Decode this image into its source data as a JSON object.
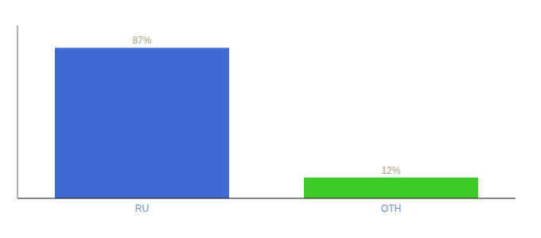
{
  "chart_data": {
    "type": "bar",
    "categories": [
      "RU",
      "OTH"
    ],
    "values": [
      87,
      12
    ],
    "value_labels": [
      "87%",
      "12%"
    ],
    "colors": [
      "#4169d4",
      "#3dcc2a"
    ],
    "ylim": [
      0,
      100
    ],
    "data_labels": true,
    "tick_labels": "x",
    "grid": false
  }
}
